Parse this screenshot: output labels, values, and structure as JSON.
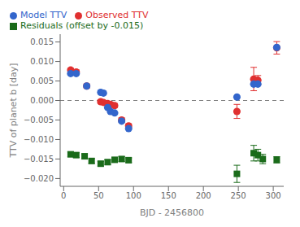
{
  "chart_data": {
    "type": "scatter",
    "xlabel": "BJD - 2456800",
    "ylabel": "TTV of planet b [day]",
    "xlim": [
      -5,
      315
    ],
    "ylim": [
      -0.022,
      0.017
    ],
    "xticks": [
      0,
      50,
      100,
      150,
      200,
      250,
      300
    ],
    "yticks": [
      {
        "value": -0.02,
        "label": "−0.020"
      },
      {
        "value": -0.015,
        "label": "−0.015"
      },
      {
        "value": -0.01,
        "label": "−0.010"
      },
      {
        "value": -0.005,
        "label": "−0.005"
      },
      {
        "value": 0.0,
        "label": "0.000"
      },
      {
        "value": 0.005,
        "label": "0.005"
      },
      {
        "value": 0.01,
        "label": "0.010"
      },
      {
        "value": 0.015,
        "label": "0.015"
      }
    ],
    "grid": false,
    "legend": "upper left",
    "reference_lines": [
      {
        "y": 0.0,
        "line_style": "dashed",
        "color": "gray"
      }
    ],
    "series": [
      {
        "name": "Observed TTV",
        "color": "#e03030",
        "marker": "circle",
        "x": [
          10,
          18,
          33,
          53,
          57,
          63,
          67,
          73,
          83,
          93,
          248,
          272,
          278,
          305
        ],
        "values": [
          0.0078,
          0.0073,
          0.0037,
          -0.0003,
          -0.0005,
          -0.0008,
          -0.001,
          -0.0013,
          -0.005,
          -0.0065,
          -0.0028,
          0.0055,
          0.0052,
          0.0135
        ],
        "errors": [
          0.0005,
          0.0005,
          0.0005,
          0.0005,
          0.0005,
          0.0005,
          0.0005,
          0.0005,
          0.0005,
          0.0005,
          0.0018,
          0.003,
          0.0012,
          0.0016
        ]
      },
      {
        "name": "Model TTV",
        "color": "#3366cc",
        "marker": "circle",
        "x": [
          10,
          18,
          33,
          53,
          57,
          63,
          67,
          73,
          83,
          93,
          248,
          272,
          278,
          305
        ],
        "values": [
          0.0069,
          0.0069,
          0.0037,
          0.0021,
          0.0019,
          -0.0018,
          -0.0028,
          -0.0032,
          -0.0053,
          -0.0072,
          0.0009,
          0.0042,
          0.0042,
          0.0136
        ]
      },
      {
        "name": "Residuals (offset by -0.015)",
        "color": "#1a6b1a",
        "marker": "square",
        "x": [
          10,
          18,
          30,
          40,
          53,
          63,
          73,
          83,
          93,
          248,
          272,
          278,
          285,
          305
        ],
        "values": [
          -0.0138,
          -0.014,
          -0.0143,
          -0.0155,
          -0.0162,
          -0.0158,
          -0.0152,
          -0.015,
          -0.0153,
          -0.0188,
          -0.0135,
          -0.014,
          -0.015,
          -0.0152
        ],
        "errors": [
          0.0006,
          0.0006,
          0.0006,
          0.0006,
          0.0006,
          0.0006,
          0.0006,
          0.0006,
          0.0006,
          0.0022,
          0.002,
          0.0015,
          0.0012,
          0.0008
        ]
      }
    ]
  }
}
